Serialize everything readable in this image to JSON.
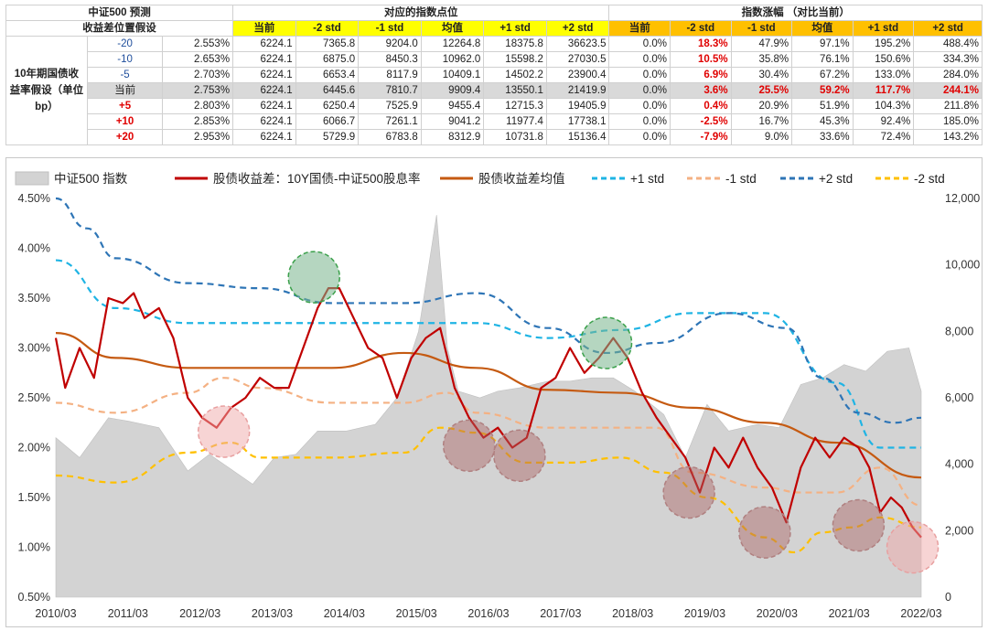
{
  "table": {
    "corner_line1": "中证500 预测",
    "corner_line2": "收益差位置假设",
    "group1_title": "对应的指数点位",
    "group2_title": "指数涨幅 （对比当前）",
    "row_group_label": "10年期国债收益率假设（单位bp）",
    "columns": [
      "当前",
      "-2 std",
      "-1 std",
      "均值",
      "+1 std",
      "+2 std"
    ],
    "rows": [
      {
        "bp": "-20",
        "yield": "2.553%",
        "levels": [
          "6224.1",
          "7365.8",
          "9204.0",
          "12264.8",
          "18375.8",
          "36623.5"
        ],
        "changes": [
          "0.0%",
          "18.3%",
          "47.9%",
          "97.1%",
          "195.2%",
          "488.4%"
        ]
      },
      {
        "bp": "-10",
        "yield": "2.653%",
        "levels": [
          "6224.1",
          "6875.0",
          "8450.3",
          "10962.0",
          "15598.2",
          "27030.5"
        ],
        "changes": [
          "0.0%",
          "10.5%",
          "35.8%",
          "76.1%",
          "150.6%",
          "334.3%"
        ]
      },
      {
        "bp": "-5",
        "yield": "2.703%",
        "levels": [
          "6224.1",
          "6653.4",
          "8117.9",
          "10409.1",
          "14502.2",
          "23900.4"
        ],
        "changes": [
          "0.0%",
          "6.9%",
          "30.4%",
          "67.2%",
          "133.0%",
          "284.0%"
        ]
      },
      {
        "bp": "当前",
        "yield": "2.753%",
        "levels": [
          "6224.1",
          "6445.6",
          "7810.7",
          "9909.4",
          "13550.1",
          "21419.9"
        ],
        "changes": [
          "0.0%",
          "3.6%",
          "25.5%",
          "59.2%",
          "117.7%",
          "244.1%"
        ]
      },
      {
        "bp": "+5",
        "yield": "2.803%",
        "levels": [
          "6224.1",
          "6250.4",
          "7525.9",
          "9455.4",
          "12715.3",
          "19405.9"
        ],
        "changes": [
          "0.0%",
          "0.4%",
          "20.9%",
          "51.9%",
          "104.3%",
          "211.8%"
        ]
      },
      {
        "bp": "+10",
        "yield": "2.853%",
        "levels": [
          "6224.1",
          "6066.7",
          "7261.1",
          "9041.2",
          "11977.4",
          "17738.1"
        ],
        "changes": [
          "0.0%",
          "-2.5%",
          "16.7%",
          "45.3%",
          "92.4%",
          "185.0%"
        ]
      },
      {
        "bp": "+20",
        "yield": "2.953%",
        "levels": [
          "6224.1",
          "5729.9",
          "6783.8",
          "8312.9",
          "10731.8",
          "15136.4"
        ],
        "changes": [
          "0.0%",
          "-7.9%",
          "9.0%",
          "33.6%",
          "72.4%",
          "143.2%"
        ]
      }
    ]
  },
  "chart_data": {
    "type": "line",
    "legend_position": "top",
    "colors": {
      "index_area": "#d3d3d3",
      "spread": "#c00000",
      "mean": "#c55a11",
      "plus1": "#1fb4e4",
      "minus1": "#f4b183",
      "plus2": "#2e75b6",
      "minus2": "#ffc000"
    },
    "x_ticks": [
      "2010/03",
      "2011/03",
      "2012/03",
      "2013/03",
      "2014/03",
      "2015/03",
      "2016/03",
      "2017/03",
      "2018/03",
      "2019/03",
      "2020/03",
      "2021/03",
      "2022/03"
    ],
    "y_left_ticks": [
      "0.50%",
      "1.00%",
      "1.50%",
      "2.00%",
      "2.50%",
      "3.00%",
      "3.50%",
      "4.00%",
      "4.50%"
    ],
    "y_right_ticks": [
      "0",
      "2,000",
      "4,000",
      "6,000",
      "8,000",
      "10,000",
      "12,000"
    ],
    "ylim_left": [
      0.5,
      4.5
    ],
    "ylim_right": [
      0,
      12000
    ],
    "xlim": [
      2010.17,
      2022.17
    ],
    "series": [
      {
        "name": "中证500 指数",
        "axis": "right",
        "kind": "area",
        "x": [
          2010.17,
          2010.5,
          2010.9,
          2011.17,
          2011.6,
          2012.0,
          2012.3,
          2012.9,
          2013.2,
          2013.5,
          2013.8,
          2014.2,
          2014.6,
          2014.9,
          2015.2,
          2015.45,
          2015.6,
          2015.75,
          2016.05,
          2016.3,
          2016.6,
          2017.0,
          2017.3,
          2017.6,
          2017.9,
          2018.2,
          2018.6,
          2018.9,
          2019.2,
          2019.5,
          2019.9,
          2020.2,
          2020.5,
          2020.8,
          2021.1,
          2021.4,
          2021.7,
          2022.0,
          2022.17
        ],
        "y": [
          4800,
          4200,
          5400,
          5300,
          5100,
          3800,
          4300,
          3400,
          4200,
          4300,
          5000,
          5000,
          5200,
          6000,
          8000,
          11500,
          7500,
          6200,
          6000,
          6200,
          6300,
          6500,
          6500,
          6600,
          6600,
          6200,
          5500,
          4200,
          5800,
          5000,
          5200,
          5100,
          6400,
          6600,
          7000,
          6800,
          7400,
          7500,
          6200
        ]
      },
      {
        "name": "股债收益差：10Y国债-中证500股息率",
        "axis": "left",
        "x": [
          2010.17,
          2010.3,
          2010.5,
          2010.7,
          2010.9,
          2011.1,
          2011.25,
          2011.4,
          2011.6,
          2011.8,
          2012.0,
          2012.2,
          2012.4,
          2012.6,
          2012.8,
          2013.0,
          2013.2,
          2013.4,
          2013.6,
          2013.8,
          2013.95,
          2014.1,
          2014.3,
          2014.5,
          2014.7,
          2014.9,
          2015.1,
          2015.3,
          2015.5,
          2015.7,
          2015.9,
          2016.1,
          2016.3,
          2016.5,
          2016.7,
          2016.9,
          2017.1,
          2017.3,
          2017.5,
          2017.7,
          2017.9,
          2018.1,
          2018.3,
          2018.5,
          2018.7,
          2018.9,
          2019.1,
          2019.3,
          2019.5,
          2019.7,
          2019.9,
          2020.1,
          2020.3,
          2020.5,
          2020.7,
          2020.9,
          2021.1,
          2021.3,
          2021.45,
          2021.6,
          2021.75,
          2021.9,
          2022.05,
          2022.17
        ],
        "y": [
          3.1,
          2.6,
          3.0,
          2.7,
          3.5,
          3.45,
          3.55,
          3.3,
          3.4,
          3.1,
          2.5,
          2.3,
          2.2,
          2.4,
          2.5,
          2.7,
          2.6,
          2.6,
          3.0,
          3.4,
          3.6,
          3.6,
          3.3,
          3.0,
          2.9,
          2.5,
          2.9,
          3.1,
          3.2,
          2.6,
          2.3,
          2.1,
          2.2,
          2.0,
          2.1,
          2.6,
          2.7,
          3.0,
          2.75,
          2.9,
          3.1,
          2.9,
          2.55,
          2.3,
          2.1,
          1.9,
          1.55,
          2.0,
          1.8,
          2.1,
          1.8,
          1.6,
          1.25,
          1.8,
          2.1,
          1.9,
          2.1,
          2.0,
          1.8,
          1.35,
          1.5,
          1.4,
          1.2,
          1.1
        ]
      },
      {
        "name": "股债收益差均值",
        "axis": "left",
        "x": [
          2010.17,
          2011.0,
          2012.0,
          2013.0,
          2014.0,
          2015.0,
          2016.0,
          2017.0,
          2018.0,
          2019.0,
          2020.0,
          2021.0,
          2022.17
        ],
        "y": [
          3.15,
          2.9,
          2.8,
          2.8,
          2.8,
          2.95,
          2.8,
          2.58,
          2.55,
          2.4,
          2.25,
          2.05,
          1.7
        ]
      },
      {
        "name": "+1 std",
        "axis": "left",
        "style": "dashed",
        "x": [
          2010.17,
          2011.0,
          2012.0,
          2013.0,
          2014.0,
          2015.0,
          2016.0,
          2017.0,
          2018.0,
          2019.0,
          2020.0,
          2021.0,
          2021.6,
          2022.17
        ],
        "y": [
          3.88,
          3.4,
          3.25,
          3.25,
          3.25,
          3.25,
          3.25,
          3.1,
          3.18,
          3.35,
          3.35,
          2.65,
          2.0,
          2.0
        ]
      },
      {
        "name": "-1 std",
        "axis": "left",
        "style": "dashed",
        "x": [
          2010.17,
          2011.0,
          2012.0,
          2012.5,
          2013.0,
          2014.0,
          2015.0,
          2015.6,
          2016.0,
          2017.0,
          2017.8,
          2018.5,
          2019.0,
          2020.0,
          2020.5,
          2021.0,
          2021.6,
          2022.17
        ],
        "y": [
          2.45,
          2.35,
          2.55,
          2.7,
          2.6,
          2.45,
          2.45,
          2.55,
          2.35,
          2.2,
          2.2,
          2.2,
          1.75,
          1.6,
          1.55,
          1.55,
          1.8,
          1.42
        ]
      },
      {
        "name": "+2 std",
        "axis": "left",
        "style": "dashed",
        "x": [
          2010.17,
          2010.6,
          2011.0,
          2012.0,
          2013.0,
          2014.0,
          2015.0,
          2016.0,
          2017.0,
          2017.8,
          2018.5,
          2019.5,
          2020.3,
          2020.8,
          2021.3,
          2021.8,
          2022.17
        ],
        "y": [
          4.5,
          4.2,
          3.9,
          3.65,
          3.6,
          3.45,
          3.45,
          3.55,
          3.2,
          2.95,
          3.05,
          3.35,
          3.2,
          2.7,
          2.35,
          2.25,
          2.3
        ]
      },
      {
        "name": "-2 std",
        "axis": "left",
        "style": "dashed",
        "x": [
          2010.17,
          2011.0,
          2012.0,
          2012.6,
          2013.0,
          2014.0,
          2015.0,
          2015.5,
          2016.0,
          2016.7,
          2017.3,
          2018.0,
          2018.6,
          2019.2,
          2020.0,
          2020.4,
          2020.8,
          2021.2,
          2021.6,
          2022.17
        ],
        "y": [
          1.72,
          1.65,
          1.95,
          2.05,
          1.9,
          1.9,
          1.95,
          2.2,
          2.15,
          1.85,
          1.85,
          1.9,
          1.75,
          1.5,
          1.1,
          0.95,
          1.15,
          1.2,
          1.3,
          1.2
        ]
      }
    ],
    "highlights": [
      {
        "x": 2012.5,
        "y": 2.16,
        "color": "pink"
      },
      {
        "x": 2013.75,
        "y": 3.71,
        "color": "green"
      },
      {
        "x": 2015.9,
        "y": 2.02,
        "color": "brown"
      },
      {
        "x": 2016.6,
        "y": 1.92,
        "color": "brown"
      },
      {
        "x": 2017.8,
        "y": 3.05,
        "color": "green"
      },
      {
        "x": 2018.95,
        "y": 1.55,
        "color": "brown"
      },
      {
        "x": 2020.0,
        "y": 1.15,
        "color": "brown"
      },
      {
        "x": 2021.3,
        "y": 1.22,
        "color": "brown"
      },
      {
        "x": 2022.05,
        "y": 1.0,
        "color": "pink"
      }
    ]
  }
}
